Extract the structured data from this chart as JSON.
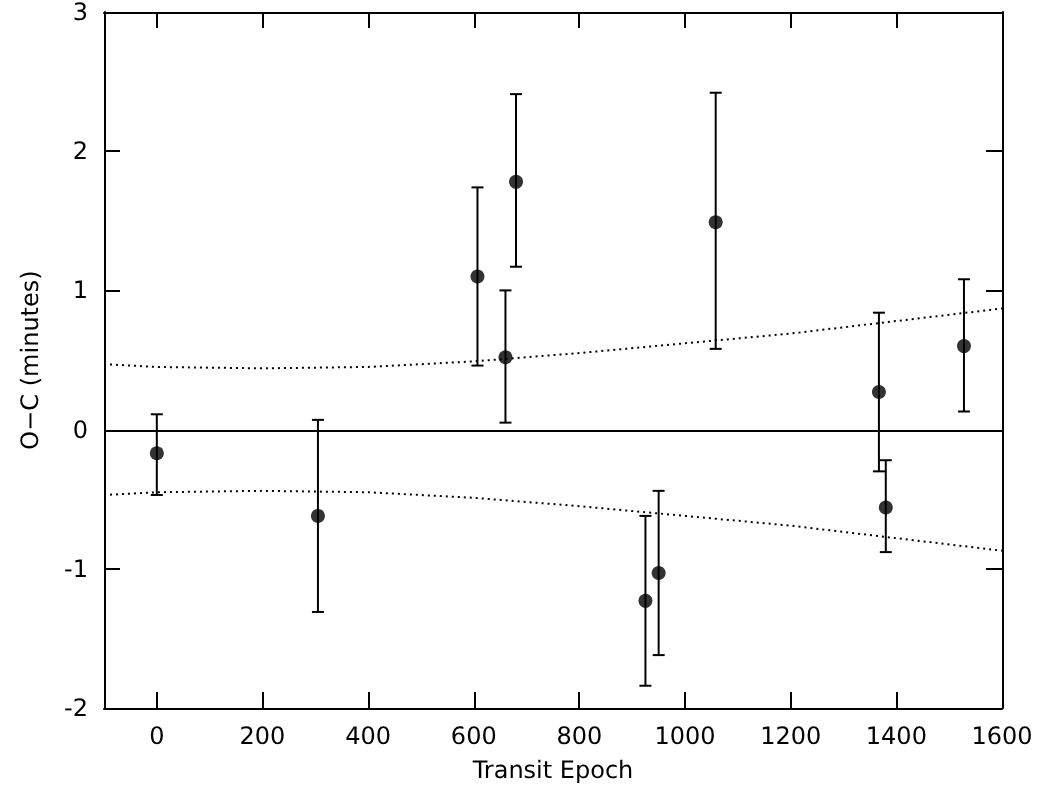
{
  "chart_data": {
    "type": "scatter",
    "xlabel": "Transit Epoch",
    "ylabel": "O−C (minutes)",
    "xlim": [
      -100,
      1600
    ],
    "xticks": [
      0,
      200,
      400,
      600,
      800,
      1000,
      1200,
      1400,
      1600
    ],
    "ylim": [
      -2,
      3
    ],
    "yticks": [
      -2,
      -1,
      0,
      1,
      2,
      3
    ],
    "grid": false,
    "marker": "circle",
    "ref_lines": [
      {
        "axis": "y",
        "value": 0,
        "color": "#000000",
        "line_style": "solid"
      }
    ],
    "series": [
      {
        "color": "#000000",
        "x": [
          0,
          305,
          607,
          660,
          680,
          925,
          950,
          1058,
          1367,
          1380,
          1528
        ],
        "values": [
          -0.17,
          -0.62,
          1.1,
          0.52,
          1.78,
          -1.23,
          -1.03,
          1.49,
          0.27,
          -0.56,
          0.6
        ],
        "errors": [
          [
            -0.47,
            0.11
          ],
          [
            -1.31,
            0.07
          ],
          [
            0.46,
            1.74
          ],
          [
            0.05,
            1.0
          ],
          [
            1.17,
            2.41
          ],
          [
            -1.84,
            -0.62
          ],
          [
            -1.62,
            -0.44
          ],
          [
            0.58,
            2.42
          ],
          [
            -0.3,
            0.84
          ],
          [
            -0.88,
            -0.22
          ],
          [
            0.13,
            1.08
          ]
        ]
      },
      {
        "type": "line",
        "color": "#000000",
        "line_style": "dotted",
        "marker": "none",
        "x": [
          -100,
          0,
          200,
          400,
          600,
          800,
          1000,
          1200,
          1400,
          1600
        ],
        "values": [
          0.47,
          0.45,
          0.44,
          0.45,
          0.49,
          0.55,
          0.62,
          0.69,
          0.78,
          0.87
        ]
      },
      {
        "type": "line",
        "color": "#000000",
        "line_style": "dotted",
        "marker": "none",
        "x": [
          -100,
          0,
          200,
          400,
          600,
          800,
          1000,
          1200,
          1400,
          1600
        ],
        "values": [
          -0.47,
          -0.45,
          -0.44,
          -0.45,
          -0.49,
          -0.55,
          -0.62,
          -0.69,
          -0.78,
          -0.87
        ]
      }
    ]
  }
}
